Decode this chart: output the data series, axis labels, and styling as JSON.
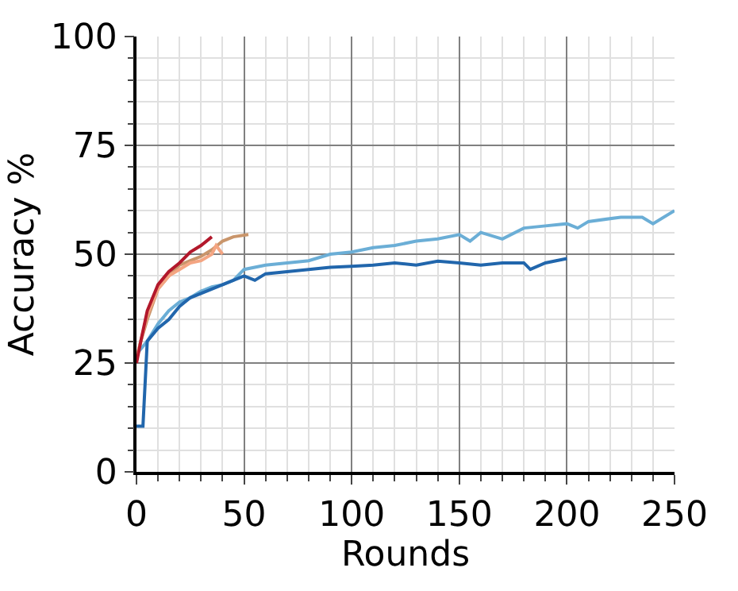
{
  "chart_data": {
    "type": "line",
    "xlabel": "Rounds",
    "ylabel": "Accuracy %",
    "xlim": [
      0,
      250
    ],
    "ylim": [
      0,
      100
    ],
    "xticks": [
      0,
      50,
      100,
      150,
      200,
      250
    ],
    "yticks": [
      0,
      25,
      50,
      75,
      100
    ],
    "grid": true,
    "series": [
      {
        "color": "#6baed6",
        "x": [
          0,
          5,
          10,
          15,
          20,
          25,
          30,
          35,
          40,
          45,
          50,
          60,
          70,
          80,
          90,
          100,
          110,
          120,
          130,
          140,
          150,
          155,
          160,
          170,
          180,
          190,
          200,
          205,
          210,
          225,
          235,
          240,
          250
        ],
        "values": [
          27,
          30,
          34,
          37,
          39,
          40,
          41.5,
          42.5,
          43,
          44,
          46.5,
          47.5,
          48,
          48.5,
          50,
          50.5,
          51.5,
          52,
          53,
          53.5,
          54.5,
          53,
          55,
          53.5,
          56,
          56.5,
          57,
          56,
          57.5,
          58.5,
          58.5,
          57,
          60
        ]
      },
      {
        "color": "#2166ac",
        "x": [
          0,
          3,
          5,
          10,
          15,
          20,
          25,
          30,
          35,
          40,
          45,
          50,
          55,
          60,
          70,
          80,
          90,
          100,
          110,
          120,
          130,
          140,
          150,
          160,
          170,
          180,
          183,
          190,
          200
        ],
        "values": [
          10.5,
          10.5,
          30,
          33,
          35,
          38,
          40,
          41,
          42,
          43,
          44,
          45,
          44,
          45.5,
          46,
          46.5,
          47,
          47.2,
          47.5,
          48,
          47.5,
          48.4,
          48,
          47.5,
          48,
          48,
          46.5,
          48,
          49
        ]
      },
      {
        "color": "#c9956b",
        "x": [
          0,
          2,
          5,
          10,
          15,
          20,
          25,
          30,
          35,
          40,
          45,
          52
        ],
        "values": [
          26,
          30,
          35,
          42,
          45,
          47.5,
          48.5,
          49.5,
          51,
          53,
          54,
          54.5
        ]
      },
      {
        "color": "#f4a582",
        "x": [
          0,
          2,
          5,
          10,
          15,
          20,
          25,
          30,
          35,
          37,
          40
        ],
        "values": [
          26,
          30,
          36,
          42,
          45,
          46.5,
          48,
          48.5,
          50,
          52,
          50
        ]
      },
      {
        "color": "#b2182b",
        "x": [
          0,
          2,
          5,
          10,
          15,
          20,
          25,
          30,
          35
        ],
        "values": [
          25,
          30,
          37,
          43,
          46,
          48,
          50.5,
          52,
          54
        ]
      }
    ]
  }
}
